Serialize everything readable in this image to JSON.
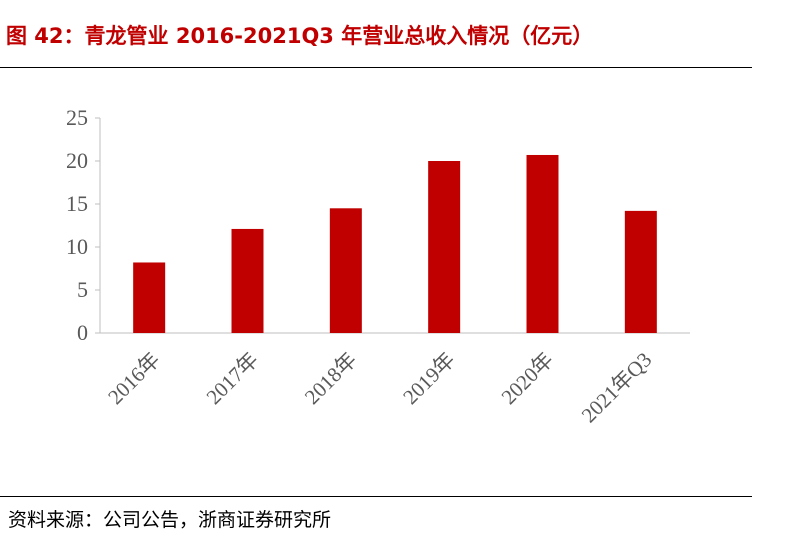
{
  "title": "图 42：青龙管业 2016-2021Q3 年营业总收入情况（亿元）",
  "source": "资料来源：公司公告，浙商证券研究所",
  "chart_data": {
    "type": "bar",
    "title": "",
    "xlabel": "",
    "ylabel": "",
    "categories": [
      "2016年",
      "2017年",
      "2018年",
      "2019年",
      "2020年",
      "2021年Q3"
    ],
    "series": [
      {
        "values": [
          8.2,
          12.1,
          14.5,
          20.0,
          20.7,
          14.2
        ]
      }
    ],
    "ylim": [
      0,
      25
    ],
    "yticks": [
      "0",
      "5",
      "10",
      "15",
      "20",
      "25"
    ],
    "bar_color": "#c00000",
    "grid": false,
    "legend": "none"
  }
}
